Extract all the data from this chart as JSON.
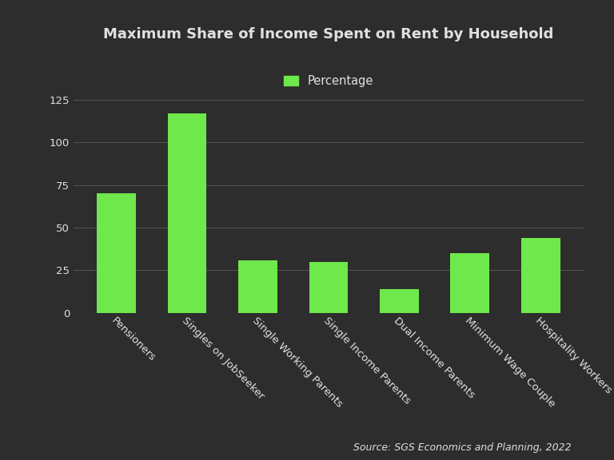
{
  "title": "Maximum Share of Income Spent on Rent by Household",
  "categories": [
    "Pensioners",
    "Singles on JobSeeker",
    "Single Working Parents",
    "Single Income Parents",
    "Dual Income Parents",
    "Minimum Wage Couple",
    "Hospitality Workers"
  ],
  "values": [
    70,
    117,
    31,
    30,
    14,
    35,
    44
  ],
  "bar_color": "#6EE84A",
  "background_color": "#2d2d2d",
  "text_color": "#e0e0e0",
  "grid_color": "#555555",
  "legend_label": "Percentage",
  "source_text": "Source: SGS Economics and Planning, 2022",
  "ylim": [
    0,
    135
  ],
  "yticks": [
    0,
    25,
    50,
    75,
    100,
    125
  ],
  "title_fontsize": 13,
  "tick_fontsize": 9.5,
  "legend_fontsize": 10.5,
  "source_fontsize": 9
}
